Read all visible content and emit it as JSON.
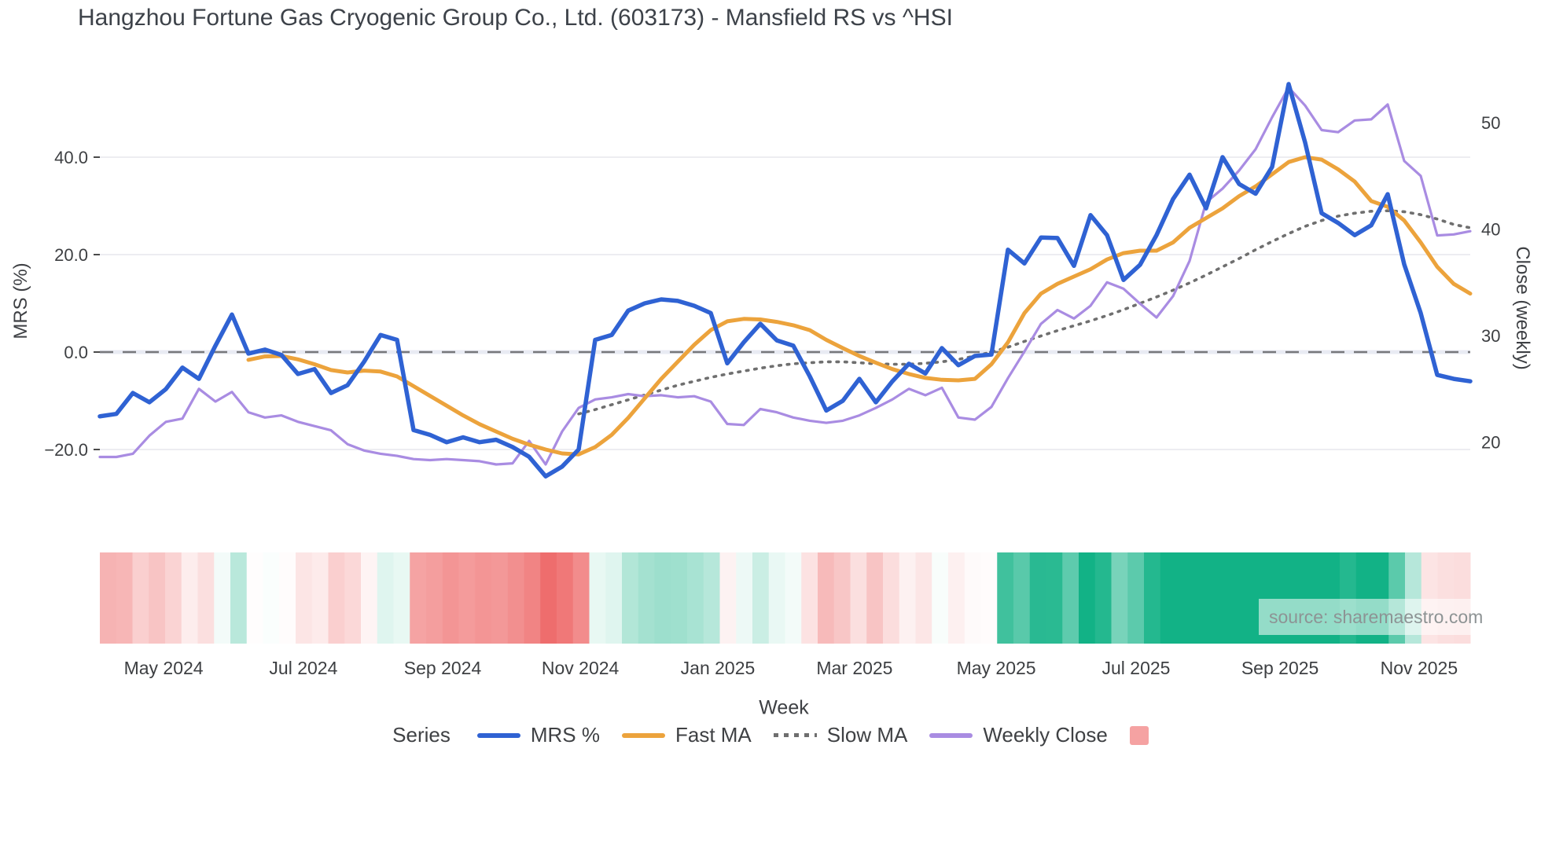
{
  "title": "Hangzhou Fortune Gas Cryogenic Group Co., Ltd. (603173) - Mansfield RS vs ^HSI",
  "watermark": "source: sharemaestro.com",
  "colors": {
    "mrs_line": "#2f62d3",
    "fast_ma": "#eca33c",
    "slow_ma": "#6f6f6f",
    "weekly_close": "#a98ce2",
    "zero_dash": "#76777b",
    "grid": "#ededf1",
    "zero_band": "#e9ebf3",
    "heat_positive": "#12b286",
    "heat_negative": "#ee6a6a",
    "legend_square": "#f5a2a2",
    "tick_text": "#3d3f42"
  },
  "legend": {
    "title": "Series",
    "items": [
      {
        "label": "MRS %",
        "marker": "line",
        "color": "#2f62d3"
      },
      {
        "label": "Fast MA",
        "marker": "line",
        "color": "#eca33c"
      },
      {
        "label": "Slow MA",
        "marker": "dotted",
        "color": "#6f6f6f"
      },
      {
        "label": "Weekly Close",
        "marker": "line",
        "color": "#a98ce2"
      },
      {
        "label": "",
        "marker": "square",
        "color": "#f5a2a2"
      }
    ]
  },
  "axes": {
    "left": {
      "label": "MRS (%)",
      "ticks": [
        {
          "value": 40,
          "label": "40.0"
        },
        {
          "value": 20,
          "label": "20.0"
        },
        {
          "value": 0,
          "label": "0.0"
        },
        {
          "value": -20,
          "label": "−20.0"
        }
      ]
    },
    "right": {
      "label": "Close (weekly)",
      "ticks": [
        {
          "value": 50,
          "label": "50"
        },
        {
          "value": 40,
          "label": "40"
        },
        {
          "value": 30,
          "label": "30"
        },
        {
          "value": 20,
          "label": "20"
        }
      ]
    },
    "x": {
      "label": "Week",
      "ticks": [
        {
          "week": 3.86,
          "label": "May 2024"
        },
        {
          "week": 12.33,
          "label": "Jul 2024"
        },
        {
          "week": 20.76,
          "label": "Sep 2024"
        },
        {
          "week": 29.1,
          "label": "Nov 2024"
        },
        {
          "week": 37.43,
          "label": "Jan 2025"
        },
        {
          "week": 45.71,
          "label": "Mar 2025"
        },
        {
          "week": 54.29,
          "label": "May 2025"
        },
        {
          "week": 62.76,
          "label": "Jul 2025"
        },
        {
          "week": 71.48,
          "label": "Sep 2025"
        },
        {
          "week": 79.9,
          "label": "Nov 2025"
        }
      ]
    }
  },
  "chart_data": {
    "type": "line",
    "title": "Hangzhou Fortune Gas Cryogenic Group Co., Ltd. (603173) - Mansfield RS vs ^HSI",
    "xlabel": "Week",
    "ylabel_left": "MRS (%)",
    "ylabel_right": "Close (weekly)",
    "x_unit": "weekly points, week 0 ≈ mid-April 2024, week 83 ≈ mid-November 2025",
    "left_ylim": [
      -34,
      58
    ],
    "right_ylim": [
      13,
      55
    ],
    "grid": true,
    "zero_line": {
      "axis": "left",
      "value": 0,
      "style": "dashed",
      "color": "#76777b"
    },
    "series": [
      {
        "name": "MRS %",
        "axis": "left",
        "color": "#2f62d3",
        "style": "solid",
        "width": 5.5,
        "start_week": 0,
        "values": [
          -13.2,
          -12.7,
          -8.4,
          -10.3,
          -7.6,
          -3.2,
          -5.5,
          1.3,
          7.7,
          -0.3,
          0.5,
          -0.6,
          -4.5,
          -3.5,
          -8.4,
          -6.8,
          -2,
          3.5,
          2.5,
          -16,
          -17,
          -18.5,
          -17.5,
          -18.5,
          -18,
          -19.5,
          -21.5,
          -25.5,
          -23.5,
          -20,
          2.5,
          3.5,
          8.5,
          10,
          10.8,
          10.5,
          9.5,
          8,
          -2.3,
          2,
          5.8,
          2.4,
          1.3,
          -5,
          -12,
          -10,
          -5.5,
          -10.3,
          -6,
          -2.4,
          -4.4,
          0.8,
          -2.7,
          -0.8,
          -0.5,
          21,
          18.2,
          23.5,
          23.4,
          17.7,
          28.1,
          24,
          14.8,
          17.9,
          24,
          31.4,
          36.4,
          29.5,
          40,
          34.5,
          32.5,
          38,
          55,
          43,
          28.5,
          26.5,
          24,
          26,
          32.4,
          18,
          8,
          -4.7,
          -5.5,
          -6
        ]
      },
      {
        "name": "Fast MA",
        "axis": "left",
        "color": "#eca33c",
        "style": "solid",
        "width": 5,
        "start_week": 9,
        "values": [
          -1.6,
          -0.9,
          -0.8,
          -1.5,
          -2.5,
          -3.7,
          -4.2,
          -3.8,
          -4.0,
          -5.0,
          -7.0,
          -9.0,
          -11.0,
          -13.0,
          -14.8,
          -16.3,
          -17.8,
          -19.0,
          -20.0,
          -20.8,
          -21.0,
          -19.5,
          -17.0,
          -13.5,
          -9.5,
          -5.5,
          -2.0,
          1.5,
          4.5,
          6.3,
          6.8,
          6.7,
          6.2,
          5.5,
          4.5,
          2.5,
          0.8,
          -0.8,
          -2.2,
          -3.5,
          -4.5,
          -5.3,
          -5.7,
          -5.8,
          -5.5,
          -2.5,
          2.0,
          8.0,
          12.0,
          14.0,
          15.5,
          17.0,
          19.0,
          20.3,
          20.8,
          20.8,
          22.5,
          25.5,
          27.5,
          29.5,
          32.0,
          34.0,
          36.5,
          39.0,
          40.0,
          39.5,
          37.5,
          35.0,
          31.0,
          29.8,
          27.0,
          22.5,
          17.5,
          14.0,
          12.0
        ]
      },
      {
        "name": "Slow MA",
        "axis": "left",
        "color": "#6f6f6f",
        "style": "dotted",
        "width": 3.6,
        "start_week": 29,
        "values": [
          -12.7,
          -11.8,
          -10.8,
          -9.8,
          -8.8,
          -7.8,
          -6.8,
          -6.0,
          -5.2,
          -4.5,
          -3.9,
          -3.3,
          -2.8,
          -2.4,
          -2.2,
          -2.0,
          -2.0,
          -2.2,
          -2.4,
          -2.5,
          -2.5,
          -2.3,
          -2.0,
          -1.5,
          -0.8,
          0.0,
          1.0,
          2.2,
          3.3,
          4.4,
          5.4,
          6.4,
          7.5,
          8.7,
          10.0,
          11.3,
          12.7,
          14.2,
          15.8,
          17.5,
          19.2,
          21.0,
          22.7,
          24.3,
          25.8,
          27.0,
          27.9,
          28.5,
          28.9,
          29.0,
          28.8,
          28.2,
          27.3,
          26.2,
          25.5
        ]
      },
      {
        "name": "Weekly Close",
        "axis": "right",
        "color": "#a98ce2",
        "style": "solid",
        "width": 3.2,
        "start_week": 0,
        "values": [
          18.6,
          18.6,
          18.9,
          20.6,
          21.9,
          22.2,
          25.0,
          23.8,
          24.7,
          22.8,
          22.3,
          22.5,
          21.9,
          21.5,
          21.1,
          19.8,
          19.2,
          18.9,
          18.7,
          18.4,
          18.3,
          18.4,
          18.3,
          18.2,
          17.9,
          18.0,
          20.1,
          17.9,
          21.0,
          23.2,
          24.0,
          24.2,
          24.5,
          24.3,
          24.4,
          24.2,
          24.3,
          23.8,
          21.7,
          21.6,
          23.1,
          22.8,
          22.3,
          22.0,
          21.8,
          22.0,
          22.5,
          23.2,
          24.0,
          25.0,
          24.4,
          25.1,
          22.3,
          22.1,
          23.3,
          26.0,
          28.5,
          31.1,
          32.4,
          31.6,
          32.8,
          35.0,
          34.4,
          33.0,
          31.7,
          33.7,
          37.0,
          42.5,
          43.8,
          45.5,
          47.5,
          50.5,
          53.3,
          51.6,
          49.3,
          49.1,
          50.2,
          50.3,
          51.7,
          46.4,
          45.0,
          39.4,
          39.5,
          39.8
        ]
      }
    ],
    "heatmap": {
      "description": "bottom strip, one cell per week, diverging colormap of MRS % value",
      "source_series": "MRS %",
      "positive_color": "#12b286",
      "negative_color": "#ee6a6a",
      "max_abs": 26
    }
  }
}
